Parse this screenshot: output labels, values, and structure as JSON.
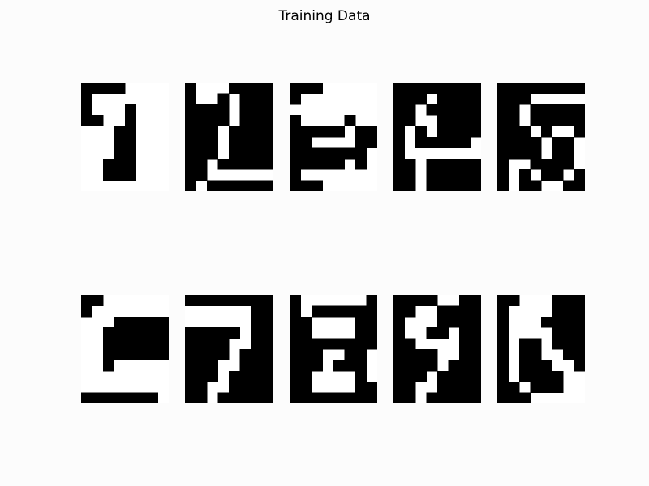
{
  "title": "Training Data",
  "colors": {
    "background": "#fcfcfc",
    "ink": "#000000",
    "stroke": "#ffffff"
  },
  "grid": {
    "cols": 8,
    "rows": 10
  },
  "digits": [
    {
      "name": "digit-1-image",
      "bitmap": [
        "11110000",
        "10000000",
        "10001000",
        "11001000",
        "00011000",
        "00011000",
        "00011000",
        "00111000",
        "00111000",
        "00000000"
      ]
    },
    {
      "name": "digit-2-image",
      "bitmap": [
        "10001111",
        "10010111",
        "11110111",
        "11110111",
        "11101111",
        "11101111",
        "11101111",
        "11011111",
        "11000000",
        "10111111"
      ]
    },
    {
      "name": "digit-3-image",
      "bitmap": [
        "11100000",
        "10000000",
        "00000000",
        "10000100",
        "11111011",
        "11000011",
        "11111110",
        "11111010",
        "10000000",
        "11100000"
      ]
    },
    {
      "name": "digit-4-image",
      "bitmap": [
        "11111111",
        "11101111",
        "11011111",
        "11001111",
        "10101111",
        "10111110",
        "10000000",
        "11011111",
        "11011111",
        "11011111"
      ]
    },
    {
      "name": "digit-5-image",
      "bitmap": [
        "11111111",
        "11100000",
        "11011111",
        "11011111",
        "11101001",
        "11110110",
        "11110110",
        "10011110",
        "10101101",
        "10110011"
      ]
    },
    {
      "name": "digit-6-image",
      "bitmap": [
        "11000000",
        "10000000",
        "00011111",
        "00111111",
        "00111111",
        "00111111",
        "00100000",
        "00000000",
        "00000000",
        "11111110"
      ]
    },
    {
      "name": "digit-7-image",
      "bitmap": [
        "11111111",
        "00000011",
        "00000011",
        "11111011",
        "11110011",
        "11110111",
        "11100111",
        "11101111",
        "11001111",
        "11011111"
      ]
    },
    {
      "name": "digit-8-image",
      "bitmap": [
        "10000001",
        "10111111",
        "11000011",
        "11000011",
        "11111111",
        "11100110",
        "11101110",
        "11000010",
        "11000011",
        "11111111"
      ]
    },
    {
      "name": "digit-9-image",
      "bitmap": [
        "11110011",
        "11001111",
        "10001111",
        "10011011",
        "11000011",
        "11110011",
        "11110111",
        "11101111",
        "11001111",
        "11011111"
      ]
    },
    {
      "name": "digit-0-image",
      "bitmap": [
        "11000111",
        "10000111",
        "10001111",
        "10000111",
        "10110111",
        "10110011",
        "10111001",
        "10111100",
        "11011100",
        "11100000"
      ]
    }
  ]
}
